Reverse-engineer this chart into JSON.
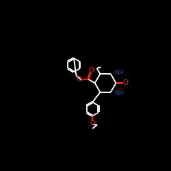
{
  "background_color": "#000000",
  "bond_color": "#ffffff",
  "N_color": "#3333ff",
  "O_color": "#ff2200",
  "figsize": [
    2.5,
    2.5
  ],
  "dpi": 100,
  "xlim": [
    0,
    10
  ],
  "ylim": [
    0,
    10
  ]
}
